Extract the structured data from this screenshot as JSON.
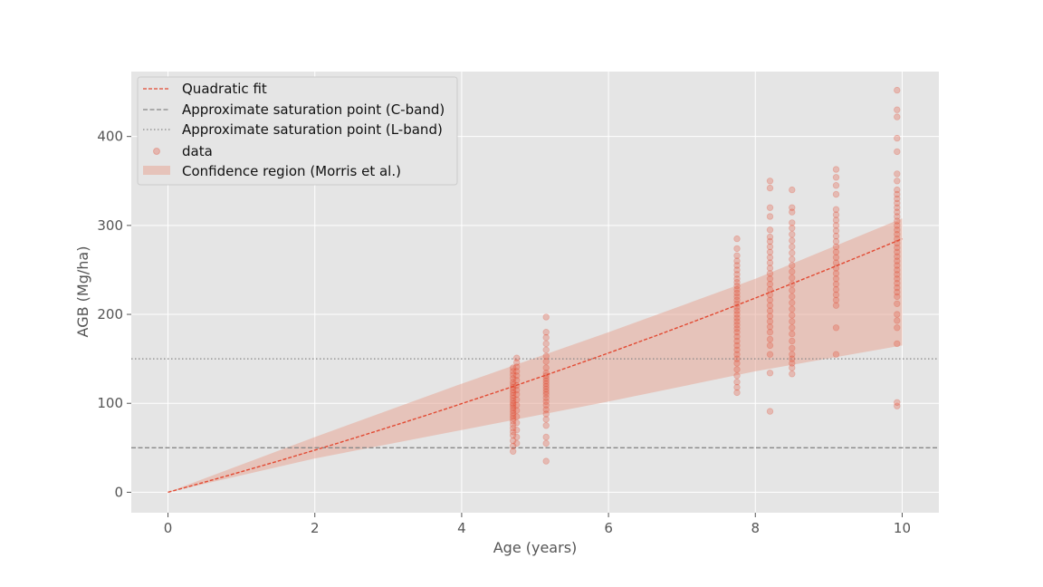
{
  "chart_data": {
    "type": "scatter",
    "xlabel": "Age (years)",
    "ylabel": "AGB (Mg/ha)",
    "xlim": [
      -0.5,
      10.5
    ],
    "ylim": [
      -23,
      473
    ],
    "xticks": [
      0,
      2,
      4,
      6,
      8,
      10
    ],
    "yticks": [
      0,
      100,
      200,
      300,
      400
    ],
    "grid": true,
    "legend_position": "top-left",
    "colors": {
      "fit": "#E24A33",
      "points": "#E24A33",
      "band": "#E8A898",
      "c_band": "#888888",
      "l_band": "#888888",
      "background": "#E5E5E5"
    },
    "quadratic_fit": {
      "label": "Quadratic fit",
      "x_range": [
        0,
        10
      ],
      "coefficients": {
        "a": 0.6,
        "b": 22.5,
        "c": 0
      }
    },
    "hlines": [
      {
        "label": "Approximate saturation point (C-band)",
        "y": 50,
        "style": "dashed"
      },
      {
        "label": "Approximate saturation point (L-band)",
        "y": 150,
        "style": "dotted"
      }
    ],
    "confidence_region": {
      "label": "Confidence region (Morris et al.)",
      "x": [
        0,
        2,
        4,
        6,
        8,
        10
      ],
      "lower": [
        0,
        38,
        70,
        102,
        136,
        165
      ],
      "upper": [
        0,
        62,
        122,
        180,
        240,
        308
      ]
    },
    "data_label": "data",
    "scatter_groups": [
      {
        "x": 4.7,
        "values": [
          46,
          52,
          58,
          64,
          68,
          72,
          76,
          80,
          83,
          86,
          89,
          92,
          95,
          98,
          100,
          103,
          106,
          109,
          112,
          115,
          118,
          121,
          124,
          128,
          132,
          136,
          140
        ]
      },
      {
        "x": 4.75,
        "values": [
          55,
          62,
          70,
          78,
          85,
          92,
          98,
          104,
          110,
          115,
          120,
          126,
          131,
          136,
          141,
          146,
          151
        ]
      },
      {
        "x": 5.15,
        "values": [
          35,
          55,
          62,
          75,
          82,
          88,
          93,
          98,
          102,
          106,
          110,
          113,
          116,
          119,
          122,
          125,
          128,
          131,
          134,
          140,
          147,
          153,
          160,
          167,
          174,
          180,
          197
        ]
      },
      {
        "x": 7.75,
        "values": [
          112,
          118,
          124,
          131,
          138,
          145,
          150,
          155,
          160,
          165,
          170,
          175,
          180,
          184,
          188,
          192,
          196,
          200,
          204,
          208,
          212,
          216,
          220,
          224,
          228,
          232,
          236,
          240,
          245,
          250,
          255,
          260,
          266,
          274,
          285
        ]
      },
      {
        "x": 8.2,
        "values": [
          91,
          134,
          155,
          165,
          172,
          180,
          186,
          192,
          198,
          204,
          210,
          216,
          222,
          228,
          234,
          240,
          246,
          252,
          258,
          264,
          270,
          276,
          282,
          287,
          295,
          310,
          320,
          342,
          350
        ]
      },
      {
        "x": 8.5,
        "values": [
          133,
          140,
          145,
          150,
          155,
          162,
          170,
          178,
          185,
          192,
          199,
          206,
          213,
          220,
          227,
          234,
          241,
          248,
          255,
          262,
          269,
          276,
          283,
          290,
          297,
          303,
          315,
          320,
          340
        ]
      },
      {
        "x": 9.1,
        "values": [
          155,
          185,
          210,
          216,
          222,
          228,
          234,
          240,
          246,
          252,
          258,
          264,
          270,
          276,
          282,
          288,
          294,
          300,
          306,
          312,
          318,
          335,
          345,
          354,
          363
        ]
      },
      {
        "x": 9.93,
        "values": [
          97,
          101,
          167,
          185,
          193,
          200,
          212,
          220,
          225,
          230,
          235,
          240,
          245,
          250,
          255,
          260,
          265,
          270,
          275,
          280,
          285,
          290,
          295,
          300,
          305,
          310,
          315,
          320,
          325,
          330,
          335,
          340,
          350,
          358,
          383,
          398,
          422,
          430,
          452
        ]
      }
    ]
  }
}
